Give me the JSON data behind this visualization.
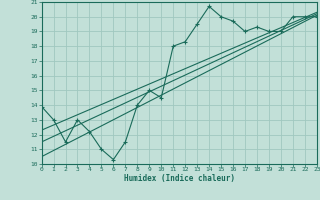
{
  "xlabel": "Humidex (Indice chaleur)",
  "bg_color": "#c2e0d8",
  "grid_color": "#a0c8c0",
  "line_color": "#1a6b5a",
  "xlim": [
    0,
    23
  ],
  "ylim": [
    10,
    21
  ],
  "xticks": [
    0,
    1,
    2,
    3,
    4,
    5,
    6,
    7,
    8,
    9,
    10,
    11,
    12,
    13,
    14,
    15,
    16,
    17,
    18,
    19,
    20,
    21,
    22,
    23
  ],
  "yticks": [
    10,
    11,
    12,
    13,
    14,
    15,
    16,
    17,
    18,
    19,
    20,
    21
  ],
  "curve1_x": [
    0,
    1,
    2,
    3,
    4,
    5,
    6,
    7,
    8,
    9,
    10,
    11,
    12,
    13,
    14,
    15,
    16,
    17,
    18,
    19,
    20,
    21,
    22,
    23
  ],
  "curve1_y": [
    13.9,
    13.0,
    11.5,
    13.0,
    12.2,
    11.0,
    10.3,
    11.5,
    14.0,
    15.0,
    14.5,
    18.0,
    18.3,
    19.5,
    20.7,
    20.0,
    19.7,
    19.0,
    19.3,
    19.0,
    19.0,
    20.0,
    20.0,
    20.0
  ],
  "line1_x": [
    0,
    23
  ],
  "line1_y": [
    10.5,
    20.1
  ],
  "line2_x": [
    0,
    23
  ],
  "line2_y": [
    11.5,
    20.2
  ],
  "line3_x": [
    0,
    23
  ],
  "line3_y": [
    12.3,
    20.3
  ]
}
